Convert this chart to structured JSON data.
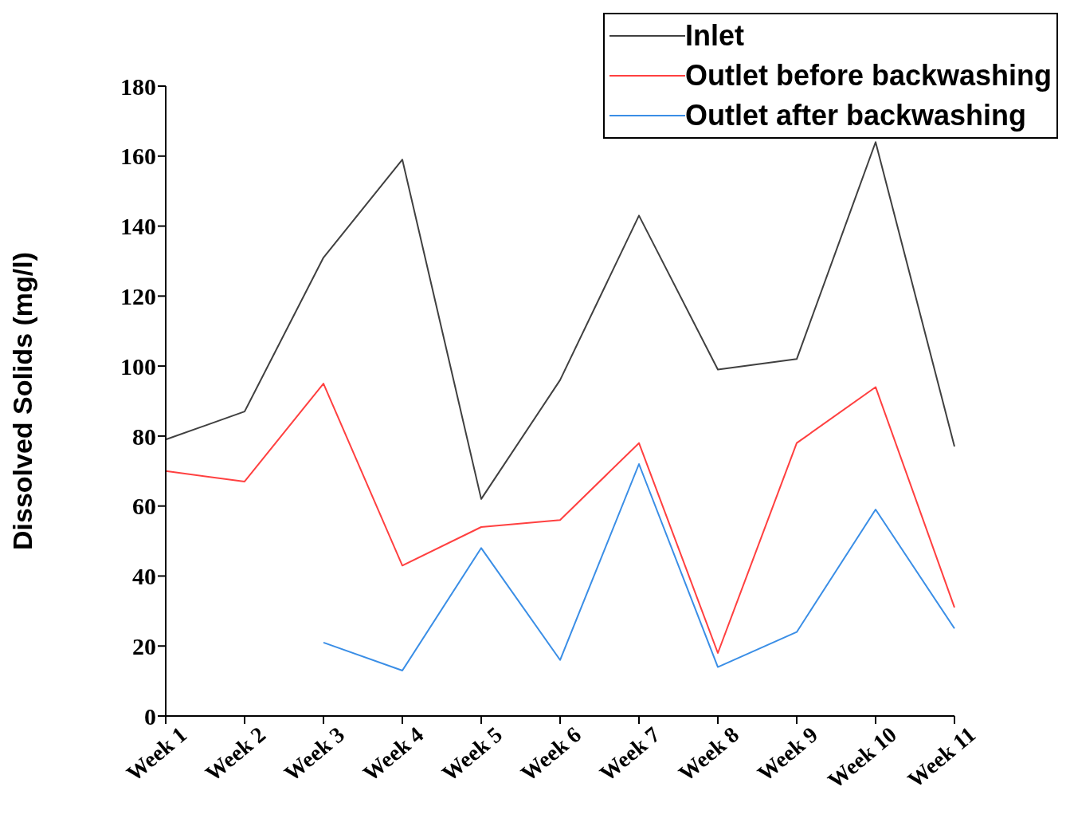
{
  "chart_data": {
    "type": "line",
    "ylabel": "Dissolved Solids (mg/l)",
    "categories": [
      "Week 1",
      "Week 2",
      "Week 3",
      "Week 4",
      "Week 5",
      "Week 6",
      "Week 7",
      "Week 8",
      "Week 9",
      "Week 10",
      "Week 11"
    ],
    "series": [
      {
        "name": "Inlet",
        "color": "#404040",
        "values": [
          79,
          87,
          131,
          159,
          62,
          96,
          143,
          99,
          102,
          164,
          77
        ]
      },
      {
        "name": "Outlet before backwashing",
        "color": "#ff4040",
        "values": [
          70,
          67,
          95,
          43,
          54,
          56,
          78,
          18,
          78,
          94,
          31
        ]
      },
      {
        "name": "Outlet after backwashing",
        "color": "#3a8ee6",
        "values": [
          null,
          null,
          21,
          13,
          48,
          16,
          72,
          14,
          24,
          59,
          25
        ]
      }
    ],
    "ylim": [
      0,
      180
    ],
    "yticks": [
      0,
      20,
      40,
      60,
      80,
      100,
      120,
      140,
      160,
      180
    ],
    "grid": false,
    "legend": "top right",
    "marker": "none",
    "line_style": "solid"
  }
}
